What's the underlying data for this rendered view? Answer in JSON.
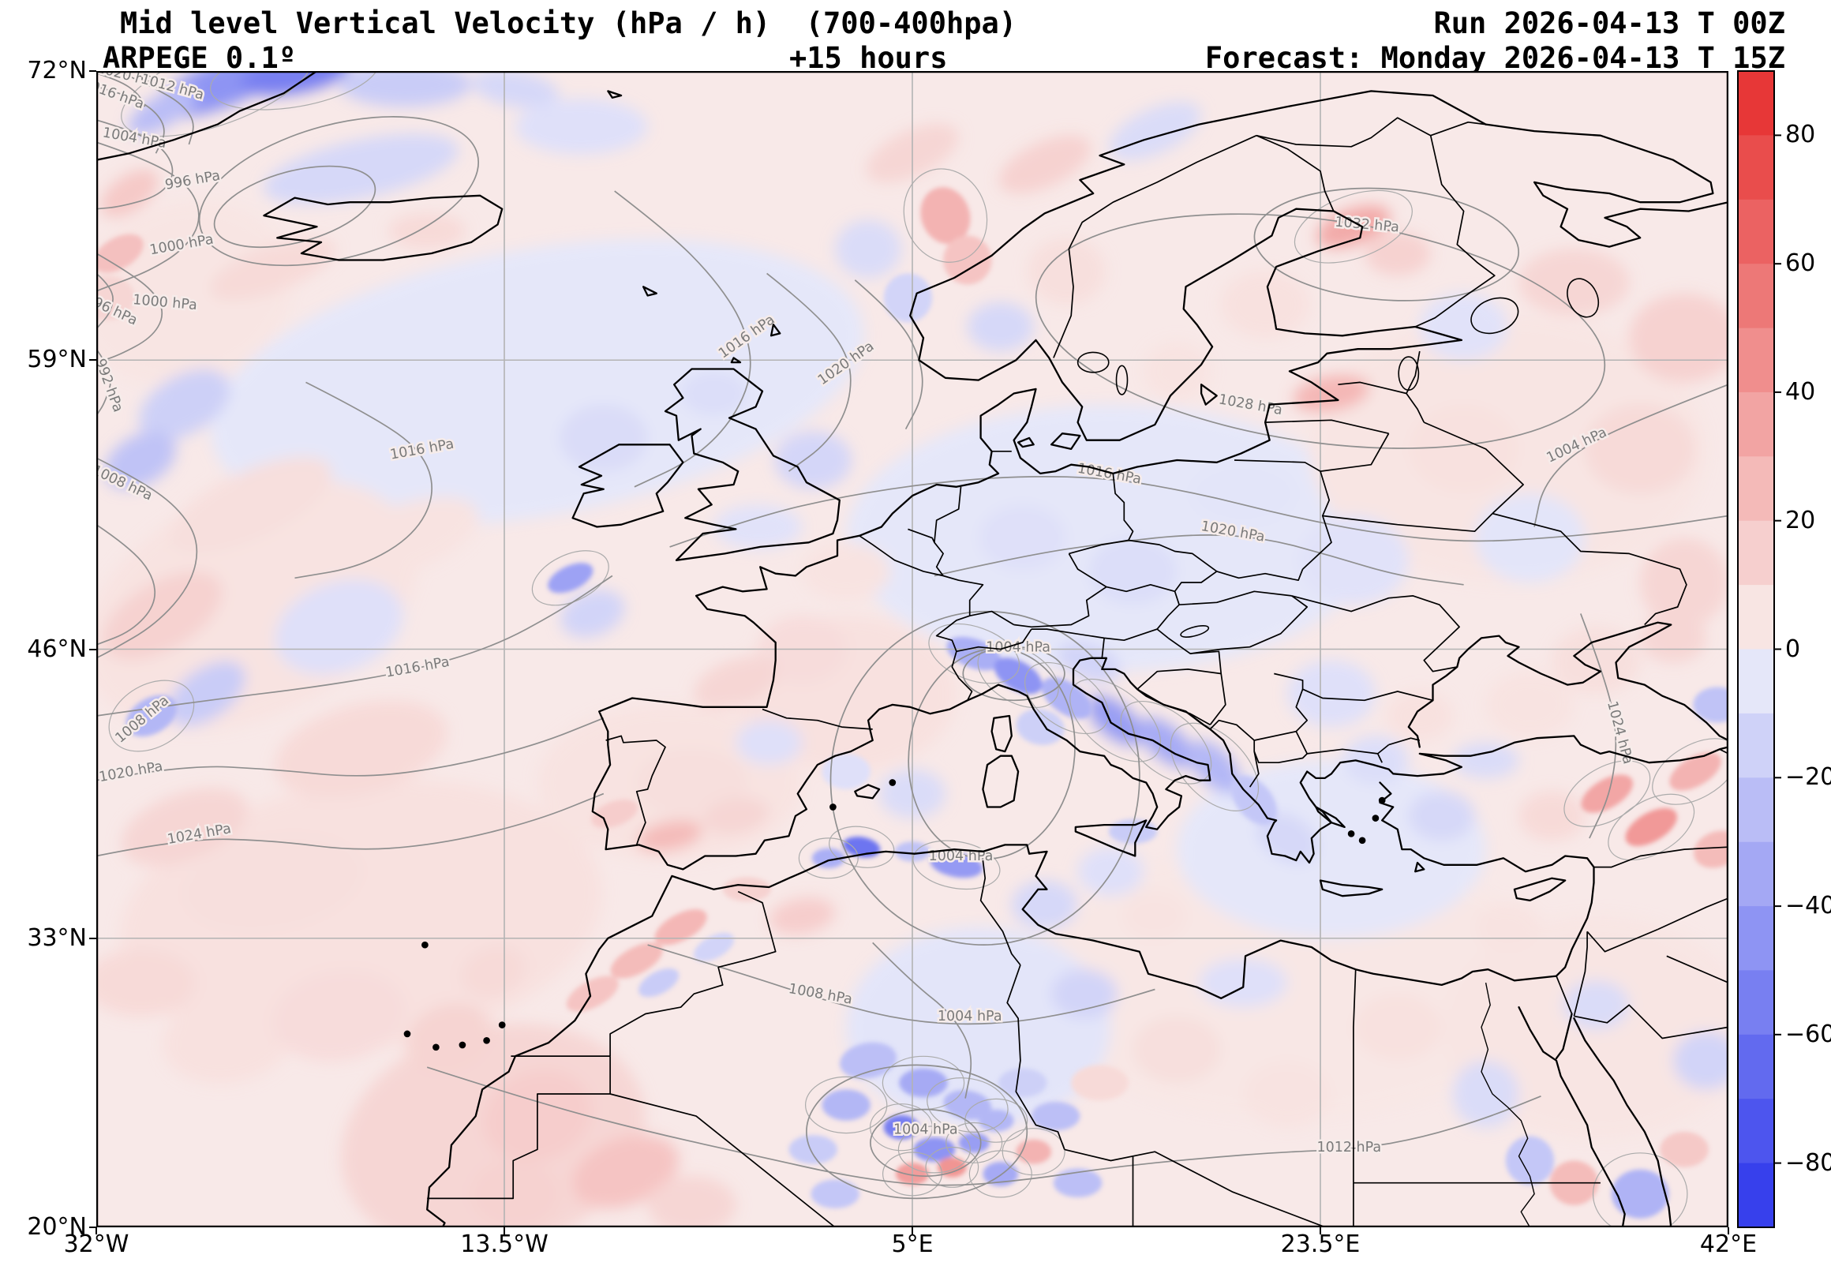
{
  "header": {
    "title": "Mid level Vertical Velocity (hPa / h)  (700-400hpa)",
    "model": "ARPEGE 0.1º",
    "lead": "+15 hours",
    "run": "Run 2026-04-13 T 00Z",
    "forecast": "Forecast: Monday 2026-04-13 T 15Z"
  },
  "chart_data": {
    "type": "heatmap",
    "title": "Mid level Vertical Velocity (hPa / h) (700-400hpa)",
    "model": "ARPEGE 0.1º",
    "lead_time": "+15 hours",
    "run": "Run 2026-04-13 T 00Z",
    "valid": "Forecast: Monday 2026-04-13 T 15Z",
    "units": "hPa / h",
    "projection": "regular lat/lon grid",
    "lon_range": [
      -32,
      42
    ],
    "lat_range": [
      20,
      72
    ],
    "x_ticks": [
      {
        "label": "32°W",
        "lon": -32
      },
      {
        "label": "13.5°W",
        "lon": -13.5
      },
      {
        "label": "5°E",
        "lon": 5
      },
      {
        "label": "23.5°E",
        "lon": 23.5
      },
      {
        "label": "42°E",
        "lon": 42
      }
    ],
    "y_ticks": [
      {
        "label": "72°N",
        "lat": 72
      },
      {
        "label": "59°N",
        "lat": 59
      },
      {
        "label": "46°N",
        "lat": 46
      },
      {
        "label": "33°N",
        "lat": 33
      },
      {
        "label": "20°N",
        "lat": 20
      }
    ],
    "colorbar": {
      "vmin": -90,
      "vmax": 90,
      "segments": 18,
      "tick_values": [
        80,
        60,
        40,
        20,
        0,
        -20,
        -40,
        -60,
        -80
      ],
      "positive_color": "#e62c2c",
      "zero_color": "#f5efee",
      "negative_color": "#2c36eb"
    },
    "isobar_values_hpa": [
      992,
      996,
      1000,
      1004,
      1008,
      1012,
      1016,
      1020,
      1024,
      1028,
      1032
    ],
    "isobar_labels": [
      [
        "1020 hPa",
        -30.6,
        71.6,
        15
      ],
      [
        "1016 hPa",
        -31.3,
        70.8,
        20
      ],
      [
        "1012 hPa",
        -28.6,
        71.1,
        15
      ],
      [
        "1004 hPa",
        -30.3,
        68.8,
        10
      ],
      [
        "996 hPa",
        -27.6,
        66.9,
        -10
      ],
      [
        "1000 hPa",
        -28.1,
        64.0,
        -10
      ],
      [
        "1000 hPa",
        -28.9,
        61.4,
        5
      ],
      [
        "996 hPa",
        -31.4,
        61.1,
        25
      ],
      [
        "992 hPa",
        -31.6,
        57.8,
        70
      ],
      [
        "1008 hPa",
        -30.9,
        53.3,
        25
      ],
      [
        "1016 hPa",
        -17.2,
        54.8,
        -10
      ],
      [
        "1016 hPa",
        -2.4,
        59.9,
        -35
      ],
      [
        "1020 hPa",
        2.1,
        58.7,
        -35
      ],
      [
        "1016 hPa",
        -17.4,
        45.0,
        -10
      ],
      [
        "1008 hPa",
        -29.8,
        42.7,
        -40
      ],
      [
        "1020 hPa",
        -30.4,
        40.3,
        -10
      ],
      [
        "1024 hPa",
        -27.3,
        37.5,
        -10
      ],
      [
        "1028 hPa",
        20.3,
        56.8,
        10
      ],
      [
        "1032 hPa",
        25.6,
        64.9,
        5
      ],
      [
        "1016 hPa",
        13.9,
        53.7,
        10
      ],
      [
        "1020 hPa",
        19.5,
        51.1,
        10
      ],
      [
        "1004 hPa",
        9.8,
        45.9,
        0
      ],
      [
        "1004 hPa",
        7.2,
        36.5,
        0
      ],
      [
        "1008 hPa",
        0.8,
        30.3,
        10
      ],
      [
        "1004 hPa",
        7.6,
        29.3,
        0
      ],
      [
        "1004 hPa",
        5.6,
        24.2,
        0
      ],
      [
        "1012 hPa",
        24.8,
        23.4,
        0
      ],
      [
        "1024 hPa",
        36.9,
        42.2,
        75
      ],
      [
        "1004 hPa",
        35.2,
        55.0,
        -25
      ]
    ],
    "field_features": [
      [
        -12,
        58,
        30,
        12,
        -10,
        -5
      ],
      [
        14,
        51,
        24,
        12,
        0,
        -5
      ],
      [
        -25,
        48,
        16,
        10,
        -25,
        6
      ],
      [
        -20,
        34,
        22,
        12,
        -8,
        7
      ],
      [
        32,
        55,
        18,
        12,
        0,
        5
      ],
      [
        22,
        31,
        24,
        12,
        0,
        4
      ],
      [
        36,
        29,
        14,
        10,
        0,
        5
      ],
      [
        8,
        29,
        12,
        9,
        0,
        -6
      ],
      [
        24,
        37,
        14,
        8,
        0,
        -5
      ],
      [
        -28,
        62,
        10,
        8,
        -20,
        5
      ],
      [
        2,
        44,
        10,
        7,
        0,
        7
      ],
      [
        -6,
        40,
        12,
        7,
        0,
        6
      ],
      [
        -14,
        24,
        14,
        10,
        -15,
        12
      ],
      [
        -26.5,
        71.3,
        6,
        2,
        -20,
        -45
      ],
      [
        -23,
        71.8,
        5,
        1.6,
        -10,
        -55
      ],
      [
        -29,
        70.2,
        3.5,
        1.4,
        -30,
        -25
      ],
      [
        -18,
        71.4,
        6,
        2,
        0,
        -18
      ],
      [
        -13,
        71.2,
        4,
        1.6,
        10,
        -12
      ],
      [
        -30.5,
        66.5,
        3,
        1.6,
        -35,
        18
      ],
      [
        -31,
        63.8,
        2.5,
        1.4,
        -30,
        22
      ],
      [
        -31.5,
        61.8,
        2.5,
        2,
        0,
        12
      ],
      [
        -24,
        63.1,
        6,
        2,
        -20,
        10
      ],
      [
        -17,
        64.8,
        3.5,
        1.6,
        0,
        10
      ],
      [
        -20,
        67.6,
        9,
        2.6,
        -12,
        -12
      ],
      [
        -10,
        69.5,
        6,
        2.5,
        0,
        -8
      ],
      [
        -28,
        57,
        4.5,
        2.6,
        -30,
        -16
      ],
      [
        -30,
        54.5,
        3.5,
        2.2,
        -30,
        -22
      ],
      [
        -25,
        52.5,
        8,
        3,
        -25,
        8
      ],
      [
        -29,
        47.5,
        6,
        3,
        -30,
        14
      ],
      [
        -27,
        44,
        4,
        2.2,
        -35,
        -18
      ],
      [
        -29.5,
        43,
        2.5,
        1.6,
        -30,
        -28
      ],
      [
        -21,
        47,
        6,
        4,
        -20,
        -8
      ],
      [
        -18,
        51,
        7,
        3,
        -20,
        6
      ],
      [
        -20,
        41.5,
        8,
        4,
        -15,
        10
      ],
      [
        -28,
        38,
        6,
        3,
        -20,
        12
      ],
      [
        -24,
        35.5,
        8,
        4,
        -10,
        8
      ],
      [
        -30,
        31,
        5,
        3,
        0,
        10
      ],
      [
        -26,
        28.5,
        6,
        4,
        -10,
        7
      ],
      [
        -21,
        29.5,
        6,
        4,
        -10,
        9
      ],
      [
        -9,
        55.5,
        4,
        3,
        0,
        -10
      ],
      [
        -4,
        57.5,
        3,
        2,
        0,
        -9
      ],
      [
        0.5,
        54.5,
        3.5,
        2.6,
        0,
        -13
      ],
      [
        -2,
        51.5,
        4,
        2,
        0,
        -7
      ],
      [
        -10.5,
        49.2,
        2.2,
        1.1,
        -25,
        -38
      ],
      [
        -9.5,
        47.6,
        3,
        2,
        -20,
        -14
      ],
      [
        2,
        49.5,
        4,
        2.6,
        0,
        6
      ],
      [
        0,
        46,
        4,
        3,
        0,
        9
      ],
      [
        -3,
        44.5,
        4,
        2,
        -20,
        12
      ],
      [
        6.5,
        65.5,
        2.2,
        2.6,
        -20,
        28
      ],
      [
        7.5,
        63.5,
        2.2,
        2.2,
        -15,
        20
      ],
      [
        4.8,
        61.8,
        2.2,
        2.2,
        0,
        -14
      ],
      [
        3,
        64,
        3,
        2.6,
        0,
        -10
      ],
      [
        9,
        60.5,
        3,
        2.2,
        0,
        -12
      ],
      [
        12,
        63,
        3.5,
        3,
        0,
        8
      ],
      [
        5,
        68.3,
        4.5,
        2,
        -25,
        12
      ],
      [
        11,
        67.8,
        4.5,
        2,
        -25,
        14
      ],
      [
        16,
        69.3,
        4.5,
        2,
        -25,
        -10
      ],
      [
        25,
        65,
        3.5,
        1.6,
        -20,
        32
      ],
      [
        27,
        63.8,
        3,
        2,
        0,
        14
      ],
      [
        21,
        61.5,
        4,
        3,
        0,
        7
      ],
      [
        24,
        57.5,
        3.5,
        1.6,
        -10,
        26
      ],
      [
        17,
        58.5,
        3,
        2.6,
        0,
        6
      ],
      [
        10,
        51,
        4,
        3,
        0,
        -8
      ],
      [
        15,
        49.5,
        4,
        3,
        0,
        -9
      ],
      [
        20,
        53,
        5,
        3,
        0,
        -6
      ],
      [
        25,
        50,
        5,
        4,
        0,
        -7
      ],
      [
        30,
        55,
        5,
        4,
        0,
        7
      ],
      [
        33,
        51,
        5,
        4,
        0,
        -6
      ],
      [
        38,
        55,
        5,
        4,
        0,
        10
      ],
      [
        40,
        60,
        5,
        4,
        0,
        14
      ],
      [
        35,
        62.5,
        5,
        3,
        0,
        12
      ],
      [
        30,
        60.5,
        4,
        3,
        0,
        -7
      ],
      [
        40,
        49,
        4,
        4,
        0,
        12
      ],
      [
        36,
        45.5,
        4,
        3,
        0,
        8
      ],
      [
        7.8,
        45.8,
        2.6,
        1.3,
        20,
        -32
      ],
      [
        9.8,
        44.8,
        2.4,
        1.3,
        30,
        -45
      ],
      [
        12,
        43.8,
        2.6,
        1.4,
        35,
        -30
      ],
      [
        14.2,
        42.8,
        3,
        1.5,
        40,
        -40
      ],
      [
        16.5,
        41.8,
        3,
        1.5,
        40,
        -34
      ],
      [
        18.7,
        40.7,
        3,
        1.6,
        45,
        -28
      ],
      [
        20.5,
        39.2,
        2.6,
        1.6,
        50,
        -20
      ],
      [
        13,
        45.4,
        3,
        1.6,
        20,
        -14
      ],
      [
        10.8,
        42.5,
        2.2,
        1.6,
        10,
        -16
      ],
      [
        22,
        37.5,
        3,
        2,
        30,
        -12
      ],
      [
        -5,
        40,
        5,
        3,
        0,
        8
      ],
      [
        -6,
        37.6,
        3,
        1.3,
        -12,
        24
      ],
      [
        -8.5,
        38.6,
        2.2,
        1.1,
        -20,
        16
      ],
      [
        -3,
        38.5,
        3,
        1.6,
        -10,
        12
      ],
      [
        -1.5,
        41.8,
        3,
        2,
        0,
        -8
      ],
      [
        2.7,
        37.1,
        1.7,
        0.9,
        10,
        -60
      ],
      [
        1.2,
        36.6,
        1.5,
        0.9,
        0,
        -32
      ],
      [
        7,
        36.3,
        2.4,
        1.1,
        10,
        -42
      ],
      [
        5,
        36.9,
        1.6,
        0.9,
        0,
        -22
      ],
      [
        -2.5,
        35.2,
        2.2,
        1.1,
        0,
        14
      ],
      [
        0,
        34,
        3,
        1.6,
        -10,
        16
      ],
      [
        -5.5,
        33.5,
        2.6,
        1.2,
        -28,
        26
      ],
      [
        -7.5,
        32,
        2.6,
        1.2,
        -28,
        24
      ],
      [
        -9.5,
        30.5,
        2.6,
        1.2,
        -28,
        20
      ],
      [
        -6.5,
        31,
        2,
        1,
        -28,
        -18
      ],
      [
        -4,
        32.6,
        2,
        1,
        -28,
        -14
      ],
      [
        3,
        27.5,
        2.6,
        1.6,
        -10,
        -24
      ],
      [
        5.5,
        26.5,
        2.2,
        1.3,
        0,
        -34
      ],
      [
        7.5,
        25.5,
        2.2,
        1.3,
        10,
        -28
      ],
      [
        4.5,
        24.5,
        1.6,
        1.1,
        0,
        -55
      ],
      [
        6,
        23.5,
        1.9,
        1.1,
        0,
        -45
      ],
      [
        5,
        22.4,
        1.5,
        1,
        0,
        38
      ],
      [
        6.8,
        22.7,
        1.3,
        0.9,
        0,
        42
      ],
      [
        7.8,
        23.8,
        1.4,
        0.9,
        0,
        -40
      ],
      [
        8.8,
        24.8,
        1.6,
        1,
        0,
        -28
      ],
      [
        9,
        22.4,
        1.6,
        1.1,
        0,
        -34
      ],
      [
        10.5,
        23.4,
        1.6,
        1.1,
        0,
        28
      ],
      [
        11.5,
        25,
        2.2,
        1.3,
        0,
        -24
      ],
      [
        2,
        25.5,
        2.2,
        1.4,
        0,
        -28
      ],
      [
        0.5,
        23.5,
        2.2,
        1.3,
        0,
        -18
      ],
      [
        12.5,
        22,
        2.2,
        1.3,
        0,
        -24
      ],
      [
        10,
        26.5,
        2.2,
        1.3,
        0,
        -16
      ],
      [
        13.5,
        26.5,
        2.6,
        1.6,
        0,
        10
      ],
      [
        1.5,
        21.5,
        2.2,
        1.3,
        0,
        -20
      ],
      [
        17,
        28,
        4,
        3,
        0,
        8
      ],
      [
        22,
        26,
        4,
        3,
        0,
        6
      ],
      [
        20,
        31,
        4,
        2.2,
        0,
        -8
      ],
      [
        27,
        29,
        4,
        3,
        0,
        7
      ],
      [
        31,
        26,
        3,
        3,
        0,
        -10
      ],
      [
        33,
        23,
        2.2,
        2.2,
        0,
        -20
      ],
      [
        35,
        22,
        2.2,
        2,
        0,
        24
      ],
      [
        38,
        21.5,
        2.6,
        2.2,
        0,
        -30
      ],
      [
        40,
        23.5,
        2.2,
        1.6,
        0,
        18
      ],
      [
        41,
        27.5,
        3,
        2.6,
        0,
        -14
      ],
      [
        36,
        30,
        3,
        2.2,
        0,
        -10
      ],
      [
        32,
        33.5,
        3,
        2.2,
        0,
        6
      ],
      [
        36.5,
        39.5,
        2.6,
        1.3,
        -30,
        34
      ],
      [
        38.5,
        38,
        2.6,
        1.3,
        -30,
        40
      ],
      [
        40.5,
        40.5,
        2.6,
        1.3,
        -30,
        28
      ],
      [
        41.5,
        37,
        2.2,
        1.6,
        -20,
        24
      ],
      [
        34,
        38.5,
        3,
        2.2,
        0,
        10
      ],
      [
        29,
        38.5,
        3,
        2.2,
        0,
        -12
      ],
      [
        31,
        41,
        3,
        1.6,
        0,
        -10
      ],
      [
        41.5,
        43.5,
        2.2,
        1.6,
        0,
        -22
      ],
      [
        39.5,
        46.5,
        3,
        2.2,
        0,
        12
      ],
      [
        24,
        44,
        4,
        3,
        0,
        -8
      ],
      [
        28,
        43,
        3,
        2.2,
        0,
        7
      ],
      [
        33,
        43.5,
        4,
        3,
        0,
        6
      ],
      [
        26,
        41,
        3,
        2.2,
        0,
        -9
      ],
      [
        -12,
        25,
        5,
        4,
        -20,
        16
      ],
      [
        -8,
        22.5,
        5,
        3,
        -20,
        20
      ],
      [
        -13,
        21.5,
        4,
        3,
        0,
        14
      ],
      [
        -5,
        21,
        4,
        2.6,
        0,
        12
      ],
      [
        -16,
        28.5,
        4,
        3,
        -20,
        13
      ],
      [
        -14,
        31.5,
        3,
        2.2,
        -20,
        10
      ],
      [
        11,
        34.5,
        3,
        2.2,
        0,
        -12
      ],
      [
        14,
        36,
        3,
        2.2,
        0,
        -8
      ],
      [
        16,
        34,
        3,
        2.2,
        0,
        6
      ],
      [
        12.8,
        30.5,
        3,
        2.2,
        0,
        -14
      ],
      [
        15,
        37.8,
        2.2,
        1.1,
        0,
        -18
      ],
      [
        5,
        39.5,
        3,
        2.2,
        0,
        -10
      ],
      [
        2,
        40.5,
        2.2,
        1.6,
        0,
        -8
      ]
    ]
  }
}
